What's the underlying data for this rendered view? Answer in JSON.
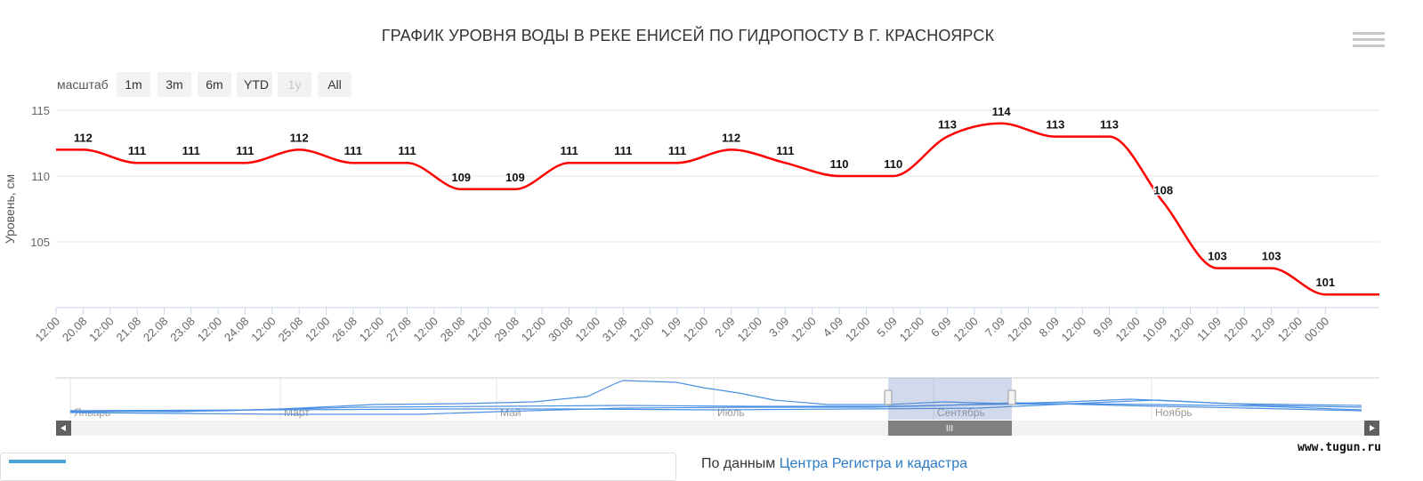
{
  "title": "ГРАФИК УРОВНЯ ВОДЫ В РЕКЕ ЕНИСЕЙ ПО ГИДРОПОСТУ В Г. КРАСНОЯРСК",
  "range_selector": {
    "label": "масштаб",
    "buttons": [
      {
        "label": "1m",
        "enabled": true
      },
      {
        "label": "3m",
        "enabled": true
      },
      {
        "label": "6m",
        "enabled": true
      },
      {
        "label": "YTD",
        "enabled": true
      },
      {
        "label": "1y",
        "enabled": false
      },
      {
        "label": "All",
        "enabled": true
      }
    ]
  },
  "navigator": {
    "months": [
      "Январь",
      "Март",
      "Май",
      "Июль",
      "Сентябрь",
      "Ноябрь"
    ],
    "handle_label": "III"
  },
  "watermark": "www.tugun.ru",
  "bottom_text": {
    "prefix": "По данным",
    "link": "Центра Регистра и кадастра"
  },
  "colors": {
    "series": "#ff0000",
    "navigator": "#4a90e2",
    "grid": "#e6e6e6"
  },
  "chart_data": {
    "type": "line",
    "title": "ГРАФИК УРОВНЯ ВОДЫ В РЕКЕ ЕНИСЕЙ ПО ГИДРОПОСТУ В Г. КРАСНОЯРСК",
    "ylabel": "Уровень, см",
    "ylim": [
      100,
      115
    ],
    "yticks": [
      105,
      110,
      115
    ],
    "grid": true,
    "x_start": "2017-08-19 12:00",
    "x_end": "2017-09-13 00:00",
    "x_tick_labels": [
      "12:00",
      "20.08",
      "12:00",
      "21.08",
      "22.08",
      "23.08",
      "12:00",
      "24.08",
      "12:00",
      "25.08",
      "12:00",
      "26.08",
      "12:00",
      "27.08",
      "12:00",
      "28.08",
      "12:00",
      "29.08",
      "12:00",
      "30.08",
      "12:00",
      "31.08",
      "12:00",
      "1.09",
      "12:00",
      "2.09",
      "12:00",
      "3.09",
      "12:00",
      "4.09",
      "12:00",
      "5.09",
      "12:00",
      "6.09",
      "12:00",
      "7.09",
      "12:00",
      "8.09",
      "12:00",
      "9.09",
      "12:00",
      "10.09",
      "12:00",
      "11.09",
      "12:00",
      "12.09",
      "12:00",
      "00:00"
    ],
    "series": [
      {
        "x": [
          "2017-08-20",
          "2017-08-21",
          "2017-08-22",
          "2017-08-23",
          "2017-08-24",
          "2017-08-25",
          "2017-08-26",
          "2017-08-27",
          "2017-08-28",
          "2017-08-29",
          "2017-08-30",
          "2017-08-31",
          "2017-09-01",
          "2017-09-02",
          "2017-09-03",
          "2017-09-04",
          "2017-09-05",
          "2017-09-06",
          "2017-09-07",
          "2017-09-08",
          "2017-09-09",
          "2017-09-10",
          "2017-09-11",
          "2017-09-12",
          "2017-09-13"
        ],
        "values": [
          112,
          111,
          111,
          111,
          112,
          111,
          111,
          109,
          109,
          111,
          111,
          111,
          112,
          111,
          110,
          110,
          113,
          114,
          113,
          113,
          108,
          103,
          103,
          101,
          101
        ],
        "data_labels": [
          "112",
          "111",
          "111",
          "111",
          "112",
          "111",
          "111",
          "109",
          "109",
          "111",
          "111",
          "111",
          "112",
          "111",
          "110",
          "110",
          "113",
          "114",
          "113",
          "113",
          "108",
          "103",
          "103",
          "101",
          ""
        ]
      }
    ]
  }
}
